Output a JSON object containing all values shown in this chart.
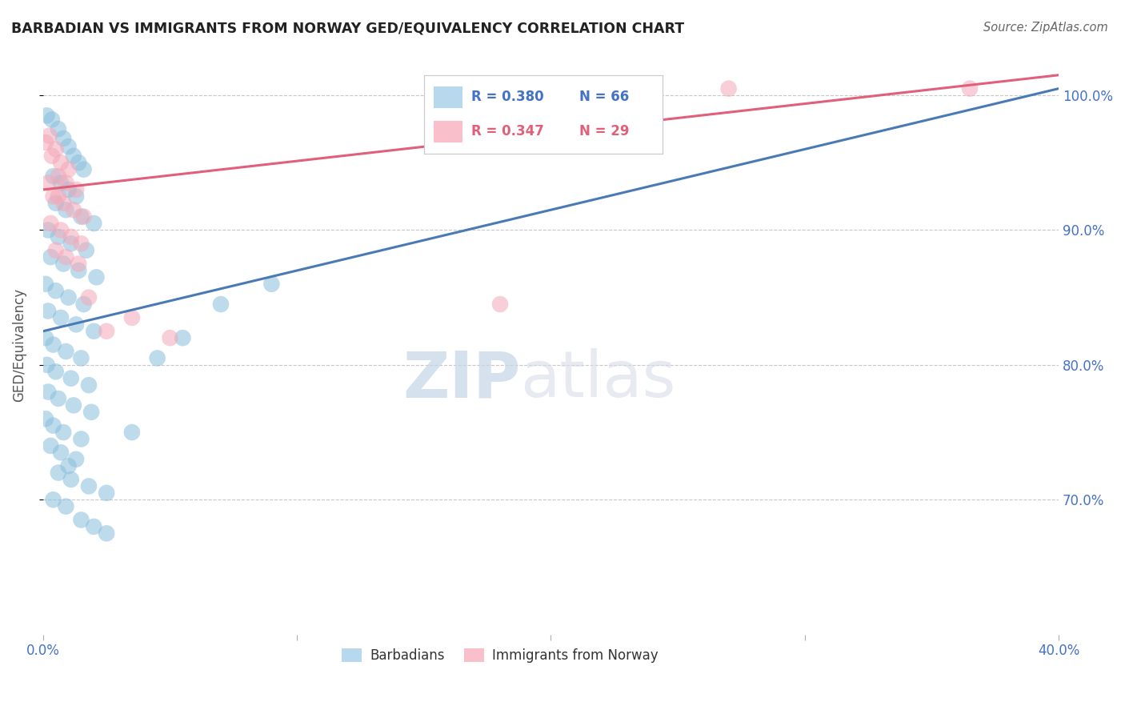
{
  "title": "BARBADIAN VS IMMIGRANTS FROM NORWAY GED/EQUIVALENCY CORRELATION CHART",
  "source": "Source: ZipAtlas.com",
  "ylabel": "GED/Equivalency",
  "watermark_zip": "ZIP",
  "watermark_atlas": "atlas",
  "xlim": [
    0.0,
    40.0
  ],
  "ylim": [
    60.0,
    103.0
  ],
  "yticks": [
    70.0,
    80.0,
    90.0,
    100.0
  ],
  "xticks": [
    0.0,
    10.0,
    20.0,
    30.0,
    40.0
  ],
  "legend_blue_r": "R = 0.380",
  "legend_blue_n": "N = 66",
  "legend_pink_r": "R = 0.347",
  "legend_pink_n": "N = 29",
  "blue_color": "#89bfdd",
  "pink_color": "#f4a8b8",
  "blue_line_color": "#4a7ab5",
  "pink_line_color": "#e0607a",
  "blue_line": [
    [
      0,
      82.5
    ],
    [
      40,
      100.5
    ]
  ],
  "pink_line": [
    [
      0,
      93.0
    ],
    [
      40,
      101.5
    ]
  ],
  "blue_scatter": [
    [
      0.15,
      98.5
    ],
    [
      0.35,
      98.2
    ],
    [
      0.6,
      97.5
    ],
    [
      0.8,
      96.8
    ],
    [
      1.0,
      96.2
    ],
    [
      1.2,
      95.5
    ],
    [
      1.4,
      95.0
    ],
    [
      1.6,
      94.5
    ],
    [
      0.4,
      94.0
    ],
    [
      0.7,
      93.5
    ],
    [
      1.0,
      93.0
    ],
    [
      1.3,
      92.5
    ],
    [
      0.5,
      92.0
    ],
    [
      0.9,
      91.5
    ],
    [
      1.5,
      91.0
    ],
    [
      2.0,
      90.5
    ],
    [
      0.2,
      90.0
    ],
    [
      0.6,
      89.5
    ],
    [
      1.1,
      89.0
    ],
    [
      1.7,
      88.5
    ],
    [
      0.3,
      88.0
    ],
    [
      0.8,
      87.5
    ],
    [
      1.4,
      87.0
    ],
    [
      2.1,
      86.5
    ],
    [
      0.1,
      86.0
    ],
    [
      0.5,
      85.5
    ],
    [
      1.0,
      85.0
    ],
    [
      1.6,
      84.5
    ],
    [
      0.2,
      84.0
    ],
    [
      0.7,
      83.5
    ],
    [
      1.3,
      83.0
    ],
    [
      2.0,
      82.5
    ],
    [
      0.1,
      82.0
    ],
    [
      0.4,
      81.5
    ],
    [
      0.9,
      81.0
    ],
    [
      1.5,
      80.5
    ],
    [
      0.15,
      80.0
    ],
    [
      0.5,
      79.5
    ],
    [
      1.1,
      79.0
    ],
    [
      1.8,
      78.5
    ],
    [
      0.2,
      78.0
    ],
    [
      0.6,
      77.5
    ],
    [
      1.2,
      77.0
    ],
    [
      1.9,
      76.5
    ],
    [
      0.1,
      76.0
    ],
    [
      0.4,
      75.5
    ],
    [
      0.8,
      75.0
    ],
    [
      1.5,
      74.5
    ],
    [
      0.3,
      74.0
    ],
    [
      0.7,
      73.5
    ],
    [
      1.3,
      73.0
    ],
    [
      1.0,
      72.5
    ],
    [
      0.6,
      72.0
    ],
    [
      1.1,
      71.5
    ],
    [
      1.8,
      71.0
    ],
    [
      2.5,
      70.5
    ],
    [
      0.4,
      70.0
    ],
    [
      0.9,
      69.5
    ],
    [
      1.5,
      68.5
    ],
    [
      2.0,
      68.0
    ],
    [
      2.5,
      67.5
    ],
    [
      3.5,
      75.0
    ],
    [
      4.5,
      80.5
    ],
    [
      5.5,
      82.0
    ],
    [
      7.0,
      84.5
    ],
    [
      9.0,
      86.0
    ]
  ],
  "pink_scatter": [
    [
      0.1,
      96.5
    ],
    [
      0.25,
      97.0
    ],
    [
      0.5,
      96.0
    ],
    [
      0.35,
      95.5
    ],
    [
      0.7,
      95.0
    ],
    [
      1.0,
      94.5
    ],
    [
      0.6,
      94.0
    ],
    [
      0.9,
      93.5
    ],
    [
      1.3,
      93.0
    ],
    [
      0.4,
      92.5
    ],
    [
      0.8,
      92.0
    ],
    [
      1.2,
      91.5
    ],
    [
      1.6,
      91.0
    ],
    [
      0.3,
      90.5
    ],
    [
      0.7,
      90.0
    ],
    [
      1.1,
      89.5
    ],
    [
      1.5,
      89.0
    ],
    [
      0.5,
      88.5
    ],
    [
      0.9,
      88.0
    ],
    [
      1.4,
      87.5
    ],
    [
      0.2,
      93.5
    ],
    [
      0.6,
      92.5
    ],
    [
      1.8,
      85.0
    ],
    [
      2.5,
      82.5
    ],
    [
      3.5,
      83.5
    ],
    [
      5.0,
      82.0
    ],
    [
      18.0,
      84.5
    ],
    [
      27.0,
      100.5
    ],
    [
      36.5,
      100.5
    ]
  ]
}
